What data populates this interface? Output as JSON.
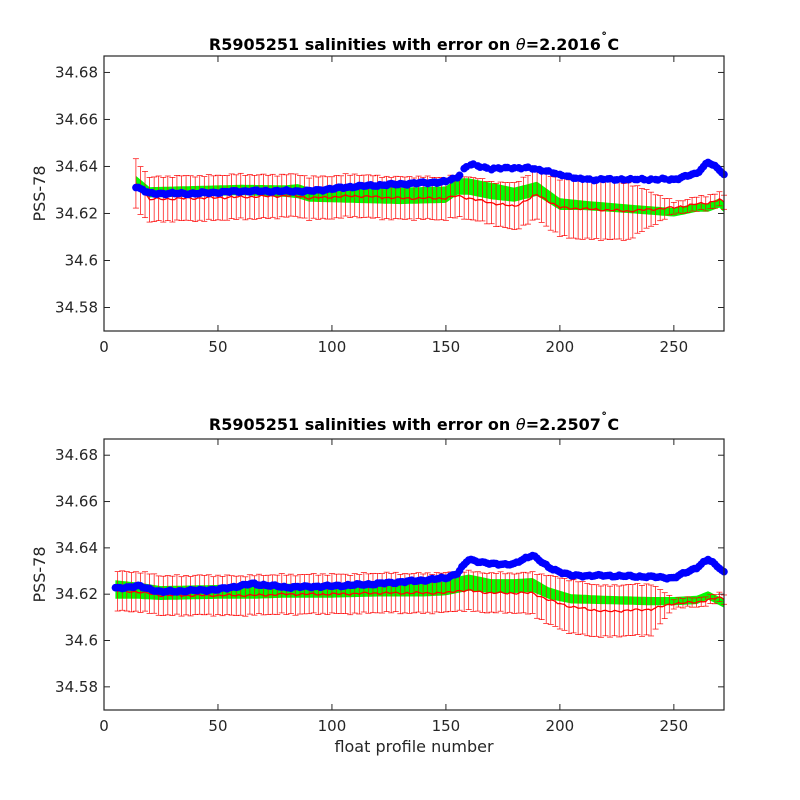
{
  "chart_data": [
    {
      "type": "scatter",
      "title_prefix": "R5905251 salinities with error on ",
      "title_theta": "θ",
      "title_value": "=2.2016",
      "title_deg": "˚",
      "title_unit": "C",
      "xlabel": "",
      "ylabel": "PSS-78",
      "xlim": [
        0,
        272
      ],
      "ylim": [
        34.57,
        34.687
      ],
      "xticks": [
        "0",
        "50",
        "100",
        "150",
        "200",
        "250"
      ],
      "yticks": [
        "34.58",
        "34.6",
        "34.62",
        "34.64",
        "34.66",
        "34.68"
      ],
      "grid": false,
      "colors": {
        "float": "#0000ff",
        "reference": "#ff0000",
        "map": "#00ff00"
      },
      "segments": [
        {
          "x": [
            14,
            20,
            40,
            60,
            80,
            85,
            90,
            110,
            130,
            150,
            155,
            160,
            170,
            180,
            190,
            200,
            210,
            230,
            250,
            260,
            265,
            270,
            272
          ],
          "float": [
            34.6315,
            34.6285,
            34.6285,
            34.6295,
            34.6295,
            34.6295,
            34.6295,
            34.6315,
            34.6325,
            34.6335,
            34.6355,
            34.641,
            34.639,
            34.6395,
            34.639,
            34.6365,
            34.6345,
            34.6345,
            34.6345,
            34.637,
            34.642,
            34.6385,
            34.6365
          ],
          "reference": [
            34.6325,
            34.626,
            34.6265,
            34.627,
            34.6275,
            34.6275,
            34.6265,
            34.6275,
            34.6265,
            34.6265,
            34.6275,
            34.6265,
            34.6245,
            34.623,
            34.628,
            34.6225,
            34.622,
            34.621,
            34.6225,
            34.624,
            34.6245,
            34.626,
            34.6245
          ],
          "ref_err": [
            0.0105,
            0.0095,
            0.0095,
            0.0095,
            0.009,
            0.009,
            0.009,
            0.009,
            0.009,
            0.009,
            0.009,
            0.009,
            0.009,
            0.01,
            0.0105,
            0.012,
            0.013,
            0.012,
            0.0025,
            0.003,
            0.003,
            0.003,
            0.003
          ],
          "map": [
            34.6335,
            34.629,
            34.6295,
            34.63,
            34.6295,
            34.6295,
            34.628,
            34.628,
            34.6275,
            34.628,
            34.6315,
            34.6315,
            34.6295,
            34.628,
            34.6305,
            34.624,
            34.6235,
            34.622,
            34.6205,
            34.6225,
            34.6225,
            34.6245,
            34.6225
          ],
          "map_err": [
            0.0025,
            0.0022,
            0.0022,
            0.0022,
            0.0025,
            0.003,
            0.003,
            0.0035,
            0.0035,
            0.0035,
            0.0035,
            0.0035,
            0.0035,
            0.003,
            0.003,
            0.0025,
            0.002,
            0.0018,
            0.0018,
            0.0018,
            0.0018,
            0.002,
            0.002
          ]
        }
      ]
    },
    {
      "type": "scatter",
      "title_prefix": "R5905251 salinities with error on ",
      "title_theta": "θ",
      "title_value": "=2.2507",
      "title_deg": "˚",
      "title_unit": "C",
      "xlabel": "float profile number",
      "ylabel": "PSS-78",
      "xlim": [
        0,
        272
      ],
      "ylim": [
        34.57,
        34.687
      ],
      "xticks": [
        "0",
        "50",
        "100",
        "150",
        "200",
        "250"
      ],
      "yticks": [
        "34.58",
        "34.6",
        "34.62",
        "34.64",
        "34.66",
        "34.68"
      ],
      "grid": false,
      "colors": {
        "float": "#0000ff",
        "reference": "#ff0000",
        "map": "#00ff00"
      },
      "segments": [
        {
          "x": [
            5,
            15,
            25,
            50,
            65,
            80,
            100,
            120,
            140,
            150,
            155,
            160,
            170,
            180,
            188,
            195,
            205,
            220,
            240,
            250,
            260,
            265,
            270,
            272
          ],
          "float": [
            34.6225,
            34.6235,
            34.621,
            34.622,
            34.6245,
            34.623,
            34.6235,
            34.6245,
            34.626,
            34.627,
            34.629,
            34.635,
            34.633,
            34.633,
            34.637,
            34.6315,
            34.628,
            34.628,
            34.6275,
            34.627,
            34.6315,
            34.635,
            34.6315,
            34.6295
          ],
          "reference": [
            34.6215,
            34.621,
            34.6195,
            34.6195,
            34.6195,
            34.62,
            34.62,
            34.6205,
            34.6205,
            34.6205,
            34.6215,
            34.6215,
            34.6205,
            34.6205,
            34.6205,
            34.6175,
            34.6145,
            34.6125,
            34.6135,
            34.616,
            34.6165,
            34.6175,
            34.6185,
            34.618
          ],
          "ref_err": [
            0.0085,
            0.0085,
            0.0085,
            0.0085,
            0.0085,
            0.0085,
            0.0085,
            0.0085,
            0.0085,
            0.0085,
            0.0085,
            0.0085,
            0.0085,
            0.0085,
            0.009,
            0.0105,
            0.0115,
            0.011,
            0.011,
            0.002,
            0.002,
            0.002,
            0.002,
            0.002
          ],
          "map": [
            34.622,
            34.6215,
            34.6205,
            34.621,
            34.621,
            34.6215,
            34.6215,
            34.622,
            34.622,
            34.6225,
            34.624,
            34.625,
            34.6235,
            34.6235,
            34.624,
            34.6205,
            34.618,
            34.6175,
            34.617,
            34.617,
            34.6175,
            34.6195,
            34.617,
            34.616
          ],
          "map_err": [
            0.004,
            0.0035,
            0.003,
            0.003,
            0.003,
            0.003,
            0.003,
            0.003,
            0.003,
            0.003,
            0.0035,
            0.0035,
            0.003,
            0.003,
            0.003,
            0.0025,
            0.002,
            0.0018,
            0.0018,
            0.0018,
            0.0018,
            0.0018,
            0.0018,
            0.0018
          ]
        }
      ]
    }
  ]
}
